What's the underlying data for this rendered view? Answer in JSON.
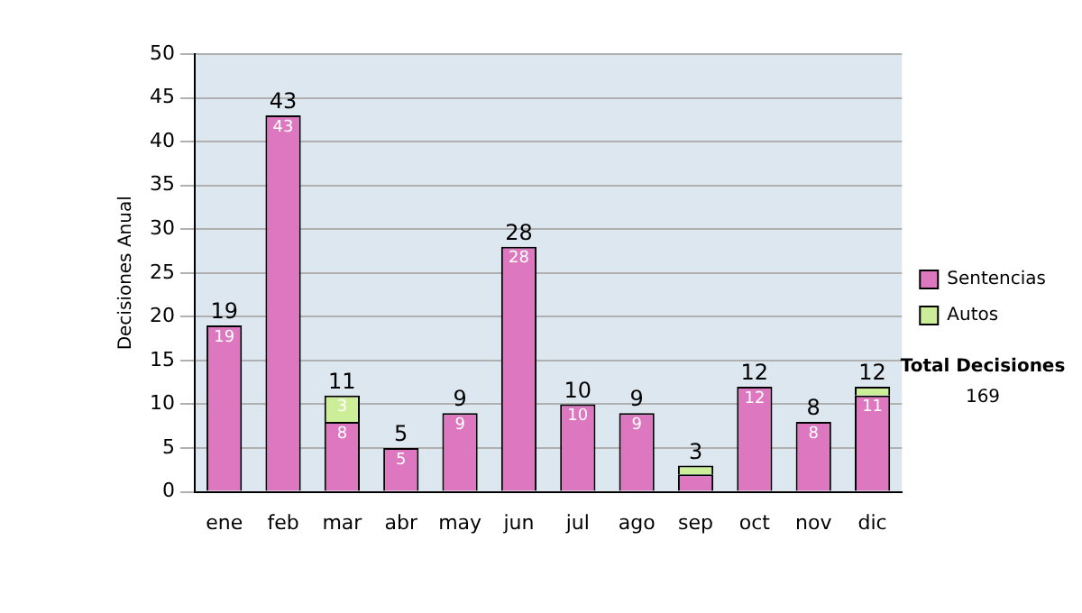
{
  "chart_data": {
    "type": "bar",
    "stacked": true,
    "ylabel": "Decisiones Anual",
    "categories": [
      "ene",
      "feb",
      "mar",
      "abr",
      "may",
      "jun",
      "jul",
      "ago",
      "sep",
      "oct",
      "nov",
      "dic"
    ],
    "series": [
      {
        "name": "Sentencias",
        "color": "#dd77c0",
        "values": [
          19,
          43,
          8,
          5,
          9,
          28,
          10,
          9,
          2,
          12,
          8,
          11
        ],
        "value_labels": [
          "19",
          "43",
          "8",
          "5",
          "9",
          "28",
          "10",
          "9",
          null,
          "12",
          "8",
          "11"
        ]
      },
      {
        "name": "Autos",
        "color": "#ccee99",
        "values": [
          0,
          0,
          3,
          0,
          0,
          0,
          0,
          0,
          1,
          0,
          0,
          1
        ],
        "value_labels": [
          null,
          null,
          "3",
          null,
          null,
          null,
          null,
          null,
          null,
          null,
          null,
          null
        ]
      }
    ],
    "totals": [
      "19",
      "43",
      "11",
      "5",
      "9",
      "28",
      "10",
      "9",
      "3",
      "12",
      "8",
      "12"
    ],
    "ylim": [
      0,
      50
    ],
    "yticks": [
      0,
      5,
      10,
      15,
      20,
      25,
      30,
      35,
      40,
      45,
      50
    ],
    "grid": "y",
    "legend": "right",
    "annotations": [
      "Total Decisiones",
      "169"
    ]
  }
}
